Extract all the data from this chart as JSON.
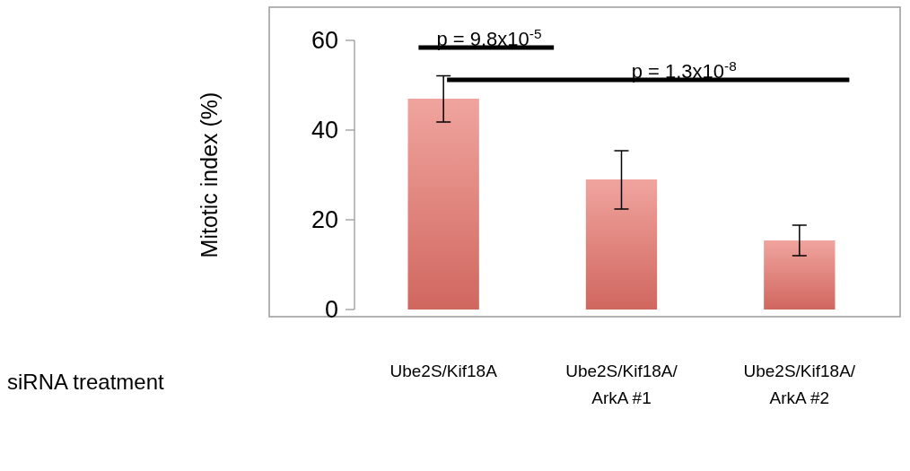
{
  "chart_data": {
    "type": "bar",
    "ylabel": "Mitotic index (%)",
    "categories": [
      "Ube2S/Kif18A",
      "Ube2S/Kif18A/\nArkA #1",
      "Ube2S/Kif18A/\nArkA #2"
    ],
    "values": [
      47,
      29,
      15.4
    ],
    "color": "#e8736a",
    "errors": [
      [
        41.8,
        52.1
      ],
      [
        22.4,
        35.4
      ],
      [
        12,
        18.8
      ]
    ],
    "ylim": [
      0,
      60
    ],
    "yticks": [
      0,
      20,
      40,
      60
    ],
    "grid": false,
    "annotations": [
      "siRNA treatment",
      "p = 9.8x10$^{-5}$",
      "p = 1.3x10$^{-8}$"
    ]
  }
}
